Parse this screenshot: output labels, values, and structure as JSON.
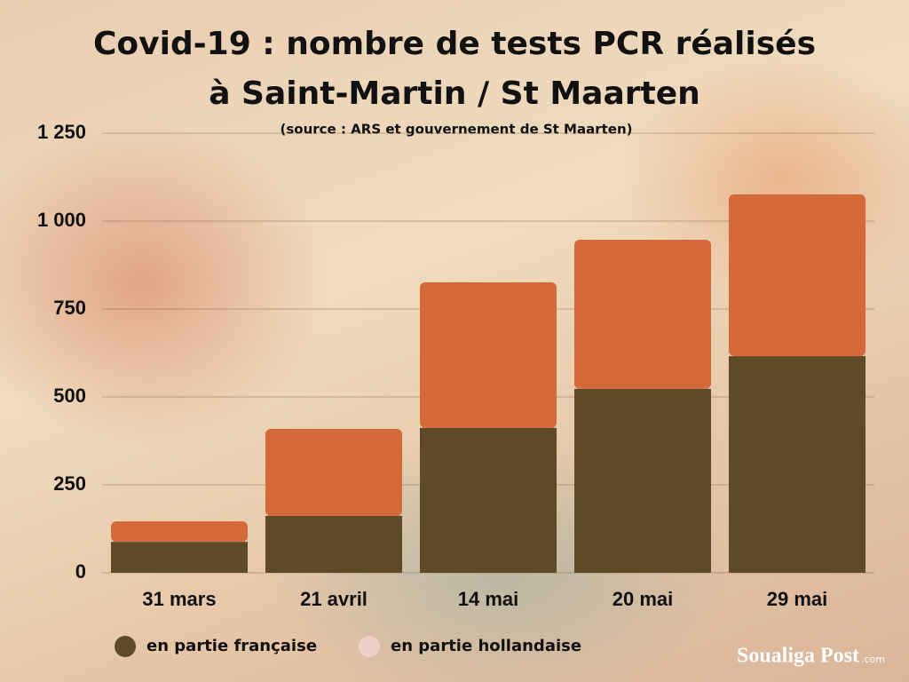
{
  "chart_data": {
    "type": "bar",
    "stacked": true,
    "title": "Covid-19 : nombre de tests PCR réalisés\nà Saint-Martin / St Maarten",
    "subtitle": "(source : ARS et gouvernement de St Maarten)",
    "categories": [
      "31 mars",
      "21 avril",
      "14 mai",
      "20 mai",
      "29 mai"
    ],
    "series": [
      {
        "name": "en partie française",
        "color": "#5e4a26",
        "legend_color": "#5e4a26",
        "values": [
          88,
          162,
          412,
          523,
          616
        ]
      },
      {
        "name": "en partie hollandaise",
        "color": "#d4693a",
        "legend_color": "#efcfc9",
        "values": [
          58,
          247,
          414,
          424,
          460
        ]
      }
    ],
    "ylim": [
      0,
      1250
    ],
    "yticks": [
      0,
      250,
      500,
      750,
      {
        "value": 1000,
        "label": "1 000"
      },
      {
        "value": 1250,
        "label": "1 250"
      }
    ],
    "grid": true
  },
  "branding": {
    "name": "Soualiga Post",
    "domain": ".com"
  }
}
